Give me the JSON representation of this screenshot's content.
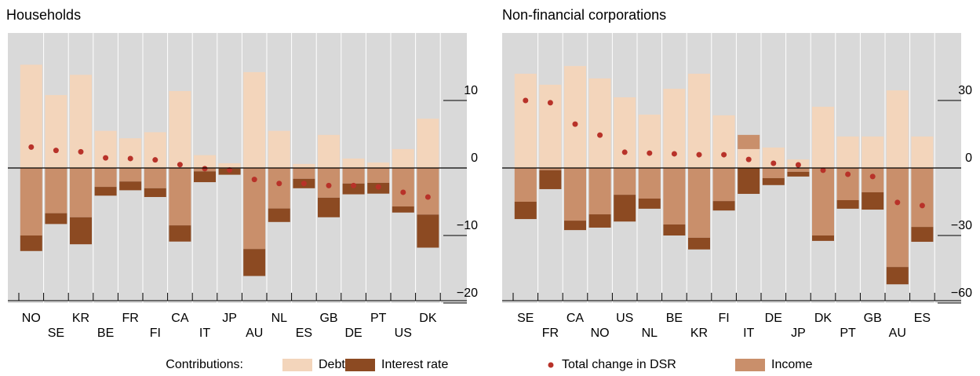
{
  "chart_data": [
    {
      "type": "bar",
      "title": "Households",
      "categories": [
        "NO",
        "SE",
        "KR",
        "BE",
        "FR",
        "FI",
        "CA",
        "IT",
        "JP",
        "AU",
        "NL",
        "ES",
        "GB",
        "DE",
        "PT",
        "US",
        "DK"
      ],
      "series": [
        {
          "name": "Debt",
          "color": "#f3d5bb",
          "values": [
            15.3,
            10.8,
            13.8,
            5.5,
            4.4,
            5.3,
            11.4,
            1.9,
            0.7,
            14.2,
            5.5,
            0.6,
            4.9,
            1.4,
            0.8,
            2.8,
            7.3
          ]
        },
        {
          "name": "Income",
          "color": "#c98f6b",
          "values": [
            -10,
            -6.7,
            -7.3,
            -2.8,
            -2,
            -3,
            -8.5,
            -0.5,
            -0.1,
            -12,
            -6,
            -1.6,
            -4.4,
            -2.3,
            -2.2,
            -5.7,
            -6.9
          ]
        },
        {
          "name": "Interest rate",
          "color": "#8c4a22",
          "values": [
            -2.3,
            -1.6,
            -4,
            -1.3,
            -1.3,
            -1.3,
            -2.4,
            -1.6,
            -0.9,
            -4,
            -2,
            -1.4,
            -2.9,
            -1.6,
            -1.6,
            -0.9,
            -4.9
          ]
        },
        {
          "name": "Total change in DSR",
          "color": "#b83229",
          "type": "dot",
          "values": [
            3.1,
            2.6,
            2.4,
            1.5,
            1.4,
            1.2,
            0.5,
            -0.1,
            -0.3,
            -1.7,
            -2.3,
            -2.3,
            -2.6,
            -2.6,
            -2.8,
            -3.6,
            -4.3
          ]
        }
      ],
      "ylim": [
        -20,
        20
      ],
      "yticks": [
        10,
        0,
        {
          "value": -10,
          "label": "−10"
        },
        {
          "value": -20,
          "label": "−20"
        }
      ]
    },
    {
      "type": "bar",
      "title": "Non-financial corporations",
      "categories": [
        "SE",
        "FR",
        "CA",
        "NO",
        "US",
        "NL",
        "BE",
        "KR",
        "FI",
        "IT",
        "DE",
        "JP",
        "DK",
        "PT",
        "GB",
        "AU",
        "ES"
      ],
      "series": [
        {
          "name": "Debt",
          "color": "#f3d5bb",
          "values": [
            41.9,
            37,
            45.3,
            39.8,
            31.4,
            23.7,
            35.2,
            41.9,
            23.4,
            8.4,
            9.1,
            3.8,
            27.2,
            14,
            14,
            34.5,
            14
          ]
        },
        {
          "name": "Income",
          "color": "#c98f6b",
          "values": [
            -15,
            -1,
            -23.4,
            -20.6,
            -11.9,
            -13.6,
            -25.1,
            -31,
            -14.7,
            6.3,
            -4.5,
            -1.7,
            -30,
            -14.3,
            -10.8,
            -44,
            -26.2
          ]
        },
        {
          "name": "Interest rate",
          "color": "#8c4a22",
          "values": [
            -7.7,
            -8.4,
            -4.2,
            -5.9,
            -11.9,
            -4.5,
            -4.9,
            -5.2,
            -4.2,
            -11.5,
            -3.1,
            -2.1,
            -2.4,
            -3.8,
            -7.7,
            -7.7,
            -6.6
          ]
        },
        {
          "name": "Total change in DSR",
          "color": "#b83229",
          "type": "dot",
          "values": [
            30,
            29,
            19.5,
            14.6,
            7,
            6.6,
            6.3,
            5.9,
            5.9,
            3.8,
            2.1,
            1.4,
            -1,
            -2.8,
            -3.8,
            -15.3,
            -16.7
          ]
        }
      ],
      "ylim": [
        -60,
        60
      ],
      "yticks": [
        30,
        0,
        {
          "value": -30,
          "label": "−30"
        },
        {
          "value": -60,
          "label": "−60"
        }
      ]
    }
  ],
  "legend_label": "Contributions:"
}
